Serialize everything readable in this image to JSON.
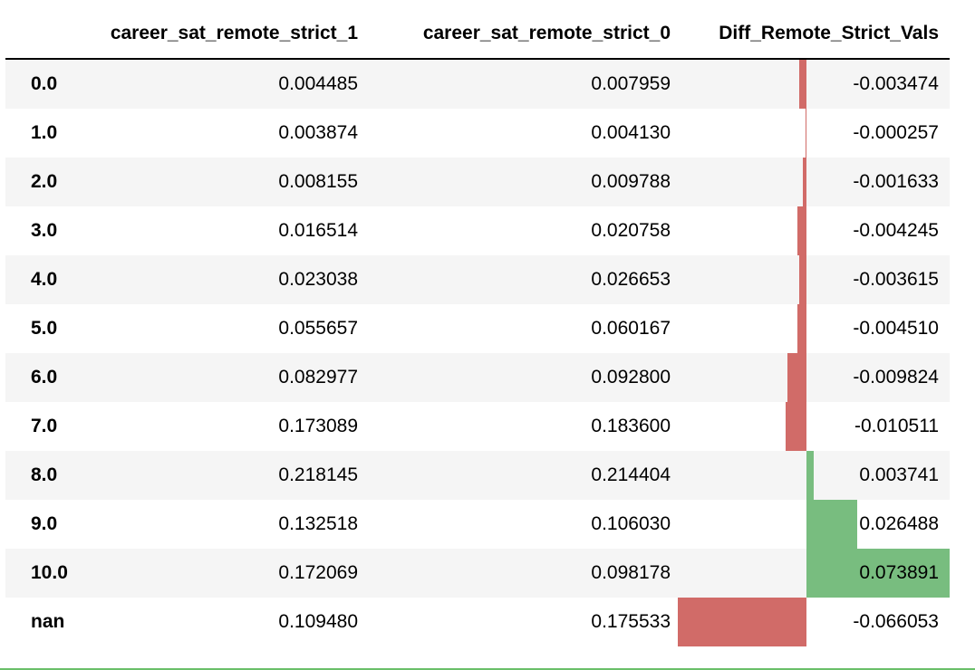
{
  "table": {
    "columns": [
      "career_sat_remote_strict_1",
      "career_sat_remote_strict_0",
      "Diff_Remote_Strict_Vals"
    ],
    "rows": [
      {
        "index": "0.0",
        "col1": "0.004485",
        "col2": "0.007959",
        "diff": "-0.003474",
        "diff_value": -0.003474
      },
      {
        "index": "1.0",
        "col1": "0.003874",
        "col2": "0.004130",
        "diff": "-0.000257",
        "diff_value": -0.000257
      },
      {
        "index": "2.0",
        "col1": "0.008155",
        "col2": "0.009788",
        "diff": "-0.001633",
        "diff_value": -0.001633
      },
      {
        "index": "3.0",
        "col1": "0.016514",
        "col2": "0.020758",
        "diff": "-0.004245",
        "diff_value": -0.004245
      },
      {
        "index": "4.0",
        "col1": "0.023038",
        "col2": "0.026653",
        "diff": "-0.003615",
        "diff_value": -0.003615
      },
      {
        "index": "5.0",
        "col1": "0.055657",
        "col2": "0.060167",
        "diff": "-0.004510",
        "diff_value": -0.00451
      },
      {
        "index": "6.0",
        "col1": "0.082977",
        "col2": "0.092800",
        "diff": "-0.009824",
        "diff_value": -0.009824
      },
      {
        "index": "7.0",
        "col1": "0.173089",
        "col2": "0.183600",
        "diff": "-0.010511",
        "diff_value": -0.010511
      },
      {
        "index": "8.0",
        "col1": "0.218145",
        "col2": "0.214404",
        "diff": "0.003741",
        "diff_value": 0.003741
      },
      {
        "index": "9.0",
        "col1": "0.132518",
        "col2": "0.106030",
        "diff": "0.026488",
        "diff_value": 0.026488
      },
      {
        "index": "10.0",
        "col1": "0.172069",
        "col2": "0.098178",
        "diff": "0.073891",
        "diff_value": 0.073891
      },
      {
        "index": "nan",
        "col1": "0.109480",
        "col2": "0.175533",
        "diff": "-0.066053",
        "diff_value": -0.066053
      }
    ],
    "bar_colors": {
      "negative": "#d16b68",
      "positive": "#78bd7f"
    }
  }
}
